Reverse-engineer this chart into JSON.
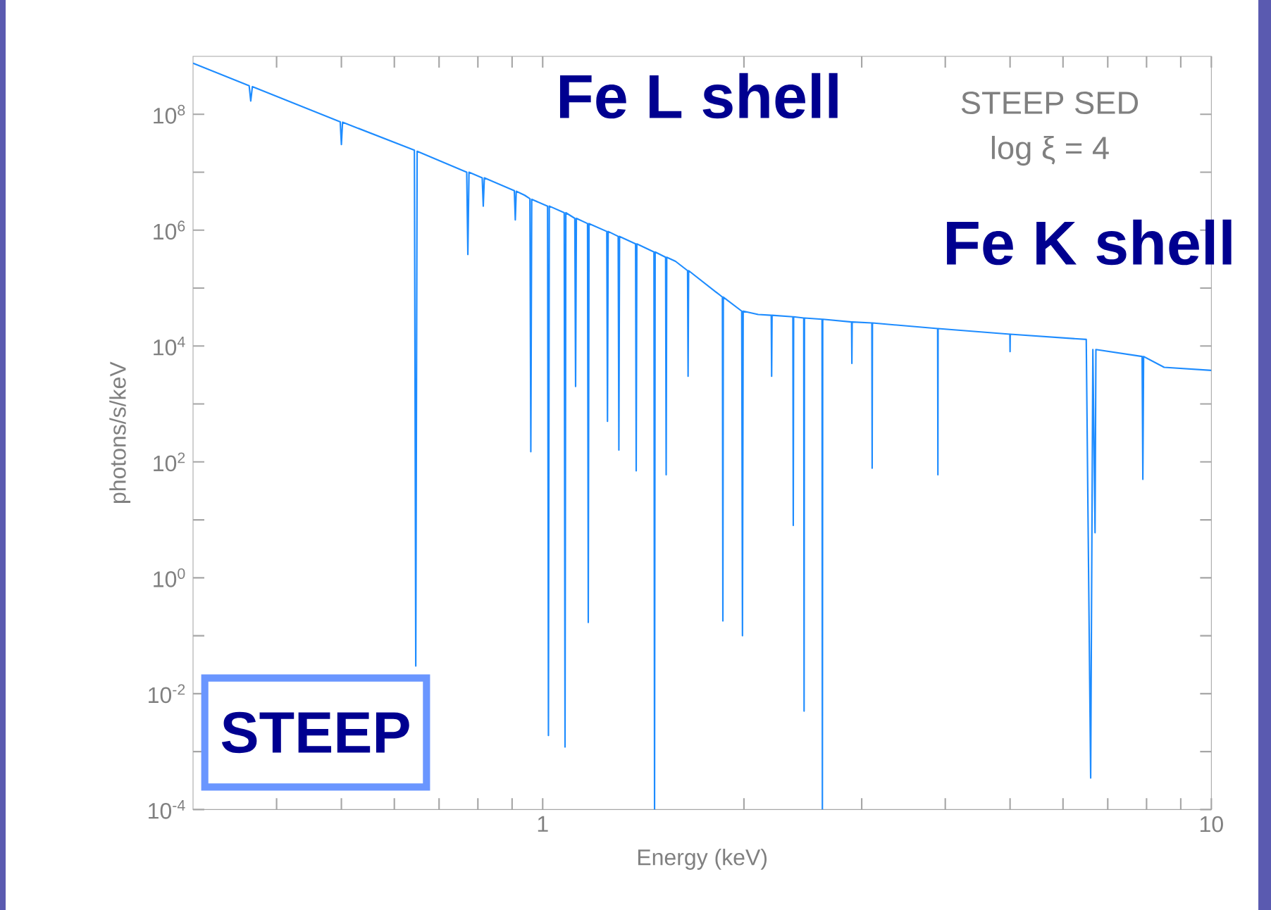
{
  "chart_data": {
    "type": "line",
    "xlabel": "Energy (keV)",
    "ylabel": "photons/s/keV",
    "log": "xy",
    "color": "#1e8cff",
    "line_style": "solid",
    "xlim": [
      0.3,
      10
    ],
    "ylim": [
      0.0001,
      1000000000
    ],
    "xticks": [
      {
        "value": 0.4,
        "label": null
      },
      {
        "value": 0.5,
        "label": null
      },
      {
        "value": 0.6,
        "label": null
      },
      {
        "value": 0.7,
        "label": null
      },
      {
        "value": 0.8,
        "label": null
      },
      {
        "value": 0.9,
        "label": null
      },
      1,
      {
        "value": 2,
        "label": null
      },
      {
        "value": 3,
        "label": null
      },
      {
        "value": 4,
        "label": null
      },
      {
        "value": 5,
        "label": null
      },
      {
        "value": 6,
        "label": null
      },
      {
        "value": 7,
        "label": null
      },
      {
        "value": 8,
        "label": null
      },
      {
        "value": 9,
        "label": null
      },
      10
    ],
    "yticks": [
      {
        "value": 0.0001,
        "label": "10$^{-4}$"
      },
      {
        "value": 0.001,
        "label": null
      },
      {
        "value": 0.01,
        "label": "10$^{-2}$"
      },
      {
        "value": 0.1,
        "label": null
      },
      {
        "value": 1,
        "label": "10$^{0}$"
      },
      {
        "value": 10,
        "label": null
      },
      {
        "value": 100,
        "label": "10$^{2}$"
      },
      {
        "value": 1000,
        "label": null
      },
      {
        "value": 10000,
        "label": "10$^{4}$"
      },
      {
        "value": 100000,
        "label": null
      },
      {
        "value": 1000000,
        "label": "10$^{6}$"
      },
      {
        "value": 10000000,
        "label": null
      },
      {
        "value": 100000000,
        "label": "10$^{8}$"
      }
    ],
    "annotations": [
      "Fe L shell",
      "Fe K shell",
      "STEEP SED",
      "log ξ = 4",
      "STEEP"
    ],
    "x": [
      0.3,
      0.364,
      0.366,
      0.368,
      0.498,
      0.5,
      0.502,
      0.643,
      0.646,
      0.649,
      0.77,
      0.773,
      0.776,
      0.812,
      0.815,
      0.818,
      0.907,
      0.91,
      0.913,
      0.94,
      0.957,
      0.96,
      0.963,
      1.017,
      1.02,
      1.023,
      1.077,
      1.08,
      1.083,
      1.117,
      1.12,
      1.123,
      1.167,
      1.17,
      1.173,
      1.247,
      1.25,
      1.253,
      1.297,
      1.3,
      1.303,
      1.377,
      1.38,
      1.383,
      1.467,
      1.47,
      1.473,
      1.527,
      1.53,
      1.533,
      1.58,
      1.647,
      1.65,
      1.653,
      1.857,
      1.86,
      1.863,
      1.985,
      1.99,
      1.995,
      2.1,
      2.197,
      2.2,
      2.203,
      2.367,
      2.37,
      2.373,
      2.457,
      2.46,
      2.463,
      2.617,
      2.62,
      2.623,
      2.897,
      2.9,
      2.903,
      3.107,
      3.11,
      3.113,
      3.897,
      3.9,
      3.903,
      4.997,
      5.0,
      5.003,
      6.5,
      6.6,
      6.65,
      6.7,
      6.72,
      7.88,
      7.9,
      7.92,
      8.5,
      10
    ],
    "values": [
      760000000,
      310000000,
      170000000,
      300000000,
      74000000,
      30000000,
      73000000,
      24000000,
      0.03,
      23000000,
      10000000,
      380000,
      10000000,
      8000000,
      2600000,
      8000000,
      4800000,
      1500000,
      4700000,
      4000000,
      3500000,
      150,
      3400000,
      2600000,
      0.0019,
      2600000,
      2000000,
      0.0012,
      2000000,
      1600000,
      2000,
      1600000,
      1300000,
      0.17,
      1300000,
      950000,
      500,
      950000,
      780000,
      160,
      780000,
      580000,
      70,
      580000,
      420000,
      0.0001,
      420000,
      340000,
      60,
      340000,
      290000,
      200000,
      3000,
      200000,
      70000,
      0.18,
      70000,
      40000,
      0.1,
      40000,
      35000,
      34000,
      3000,
      34000,
      32000,
      8,
      32000,
      30500,
      0.005,
      30500,
      29000,
      0.0001,
      29000,
      26000,
      5000,
      26000,
      25000,
      78,
      25000,
      20000,
      60,
      20000,
      16000,
      8000,
      16000,
      13000,
      0.00035,
      8700,
      6,
      8700,
      6600,
      50,
      6600,
      4300,
      3800
    ]
  }
}
